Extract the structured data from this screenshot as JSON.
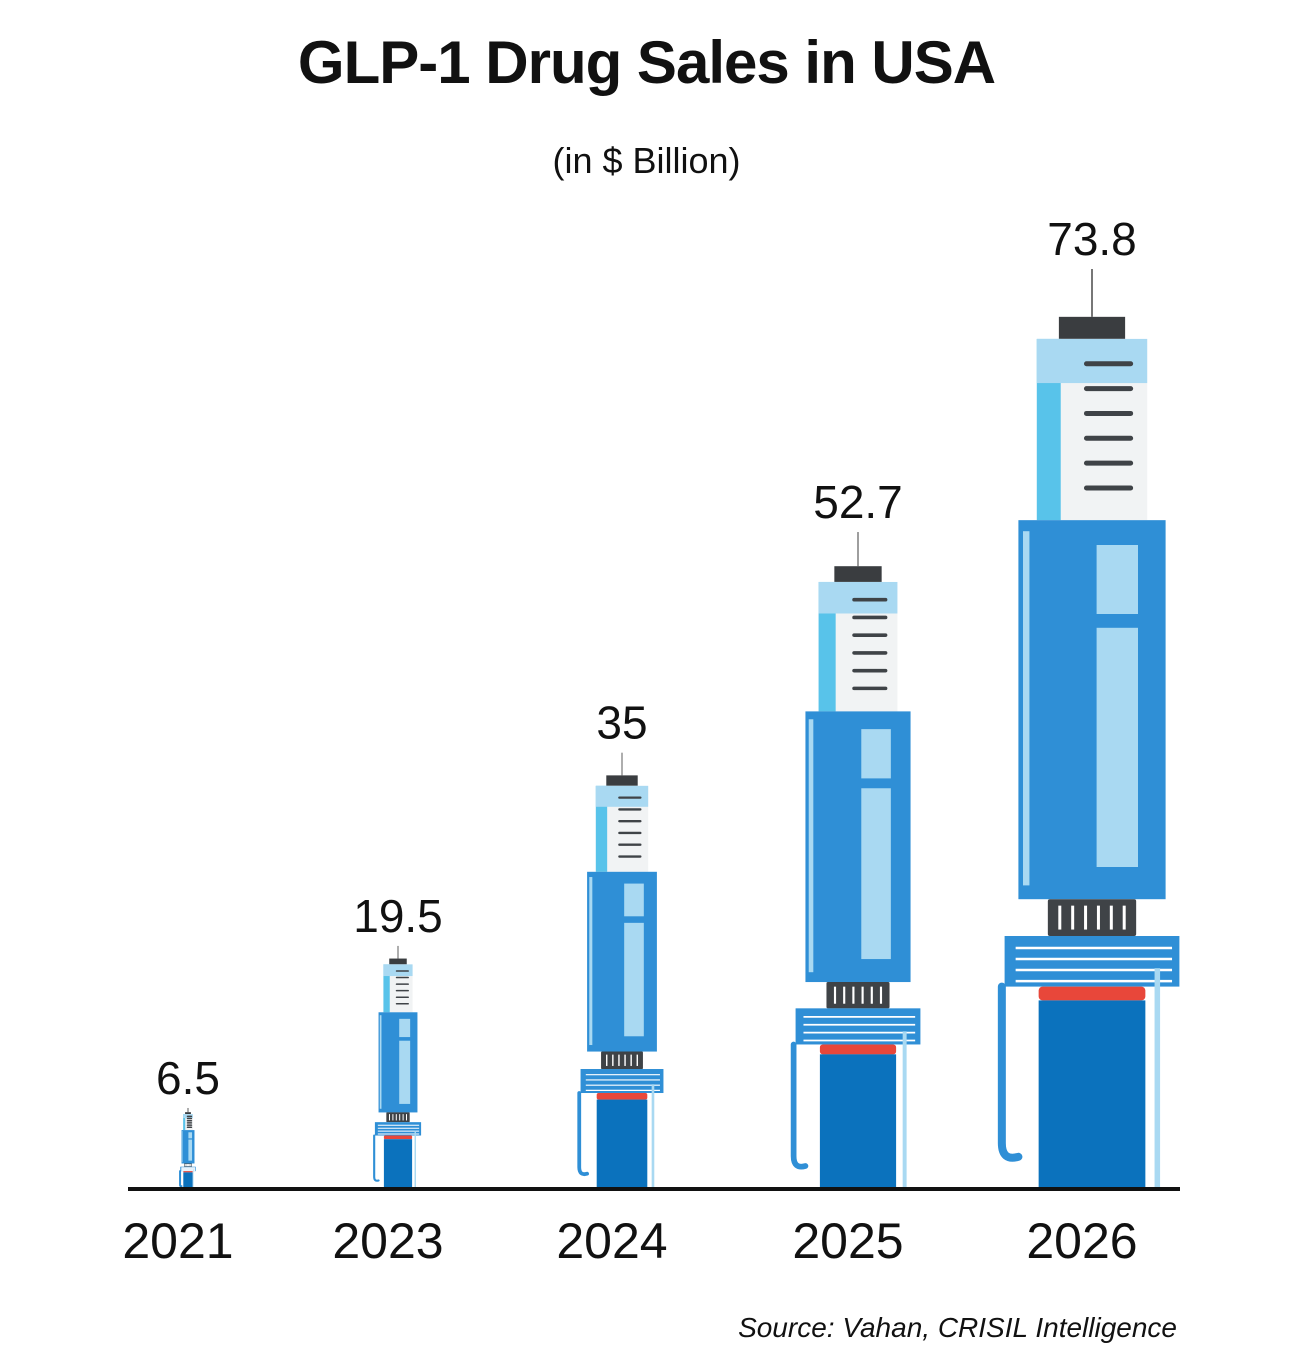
{
  "chart_data": {
    "type": "bar",
    "title": "GLP-1 Drug Sales in USA",
    "subtitle": "(in $ Billion)",
    "categories": [
      "2021",
      "2023",
      "2024",
      "2025",
      "2026"
    ],
    "values": [
      6.5,
      19.5,
      35,
      52.7,
      73.8
    ],
    "data_labels": [
      "6.5",
      "19.5",
      "35",
      "52.7",
      "73.8"
    ],
    "ylim": [
      0,
      73.8
    ],
    "grid": false,
    "legend": "none",
    "mark_style": "injection-pen"
  },
  "source": "Source: Vahan, CRISIL Intelligence",
  "colors": {
    "pen_dark": "#0b72bd",
    "pen_mid": "#2f8fd6",
    "pen_light": "#a9d9f2",
    "cap": "#58c3ea",
    "window": "#f1f3f4",
    "ticks": "#3f4347",
    "dial": "#3f4347",
    "button": "#e8473a",
    "axis": "#111111"
  }
}
